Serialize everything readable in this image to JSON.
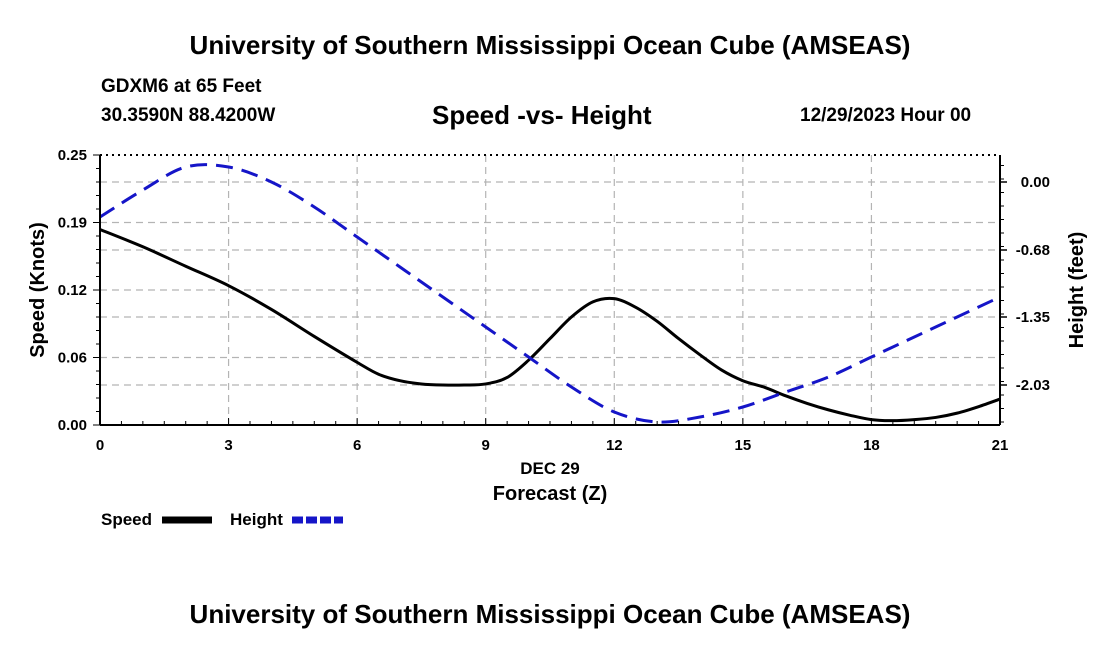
{
  "header": {
    "title": "University of Southern Mississippi Ocean Cube (AMSEAS)",
    "station": "GDXM6 at 65 Feet",
    "coordinates": "30.3590N  88.4200W",
    "chart_title": "Speed -vs- Height",
    "datetime": "12/29/2023 Hour 00"
  },
  "footer": {
    "title": "University of Southern Mississippi Ocean Cube (AMSEAS)"
  },
  "colors": {
    "speed": "#000000",
    "height": "#1515c8",
    "grid": "#b4b4b4"
  },
  "chart_data": {
    "type": "line",
    "title": "Speed -vs- Height",
    "xlabel": "Forecast (Z)",
    "xlabel_date": "DEC 29",
    "ylabel_left": "Speed (Knots)",
    "ylabel_right": "Height (feet)",
    "xlim": [
      0,
      21
    ],
    "ylim_left": [
      0,
      0.25
    ],
    "ylim_right": [
      -2.43,
      0.27
    ],
    "x_ticks": [
      0,
      3,
      6,
      9,
      12,
      15,
      18,
      21
    ],
    "x_tick_labels": [
      "0",
      "3",
      "6",
      "9",
      "12",
      "15",
      "18",
      "21"
    ],
    "y_left_ticks": [
      0,
      0.0625,
      0.125,
      0.1875,
      0.25
    ],
    "y_left_tick_labels": [
      "0.00",
      "0.06",
      "0.12",
      "0.19",
      "0.25"
    ],
    "y_right_ticks": [
      0,
      -0.68,
      -1.35,
      -2.03
    ],
    "y_right_tick_labels": [
      "0.00",
      "-0.68",
      "-1.35",
      "-2.03"
    ],
    "grid": true,
    "legend_position": "bottom-left",
    "series": [
      {
        "name": "Speed",
        "axis": "left",
        "style": "solid",
        "x": [
          0,
          1,
          2,
          3,
          4,
          5,
          6,
          6.5,
          7,
          7.5,
          8,
          8.5,
          9,
          9.5,
          10,
          10.5,
          11,
          11.5,
          12,
          12.5,
          13,
          13.5,
          14,
          14.5,
          15,
          15.5,
          16,
          16.5,
          17,
          17.5,
          18,
          18.5,
          19,
          19.5,
          20,
          20.5,
          21
        ],
        "values": [
          0.181,
          0.165,
          0.147,
          0.129,
          0.107,
          0.082,
          0.058,
          0.047,
          0.041,
          0.038,
          0.037,
          0.037,
          0.038,
          0.044,
          0.06,
          0.08,
          0.1,
          0.114,
          0.117,
          0.109,
          0.096,
          0.08,
          0.065,
          0.051,
          0.041,
          0.035,
          0.027,
          0.02,
          0.014,
          0.009,
          0.005,
          0.004,
          0.005,
          0.007,
          0.011,
          0.017,
          0.024
        ]
      },
      {
        "name": "Height",
        "axis": "right",
        "style": "dashed",
        "x": [
          0,
          1,
          2,
          3,
          4,
          5,
          6,
          7,
          8,
          9,
          10,
          11,
          12,
          13,
          14,
          15,
          16,
          17,
          18,
          19,
          20,
          21
        ],
        "values": [
          -0.35,
          -0.08,
          0.15,
          0.15,
          0.0,
          -0.25,
          -0.55,
          -0.85,
          -1.15,
          -1.45,
          -1.75,
          -2.05,
          -2.3,
          -2.4,
          -2.35,
          -2.25,
          -2.1,
          -1.95,
          -1.75,
          -1.55,
          -1.35,
          -1.15
        ]
      }
    ],
    "legend": [
      {
        "label": "Speed",
        "style": "solid"
      },
      {
        "label": "Height",
        "style": "dashed"
      }
    ]
  }
}
